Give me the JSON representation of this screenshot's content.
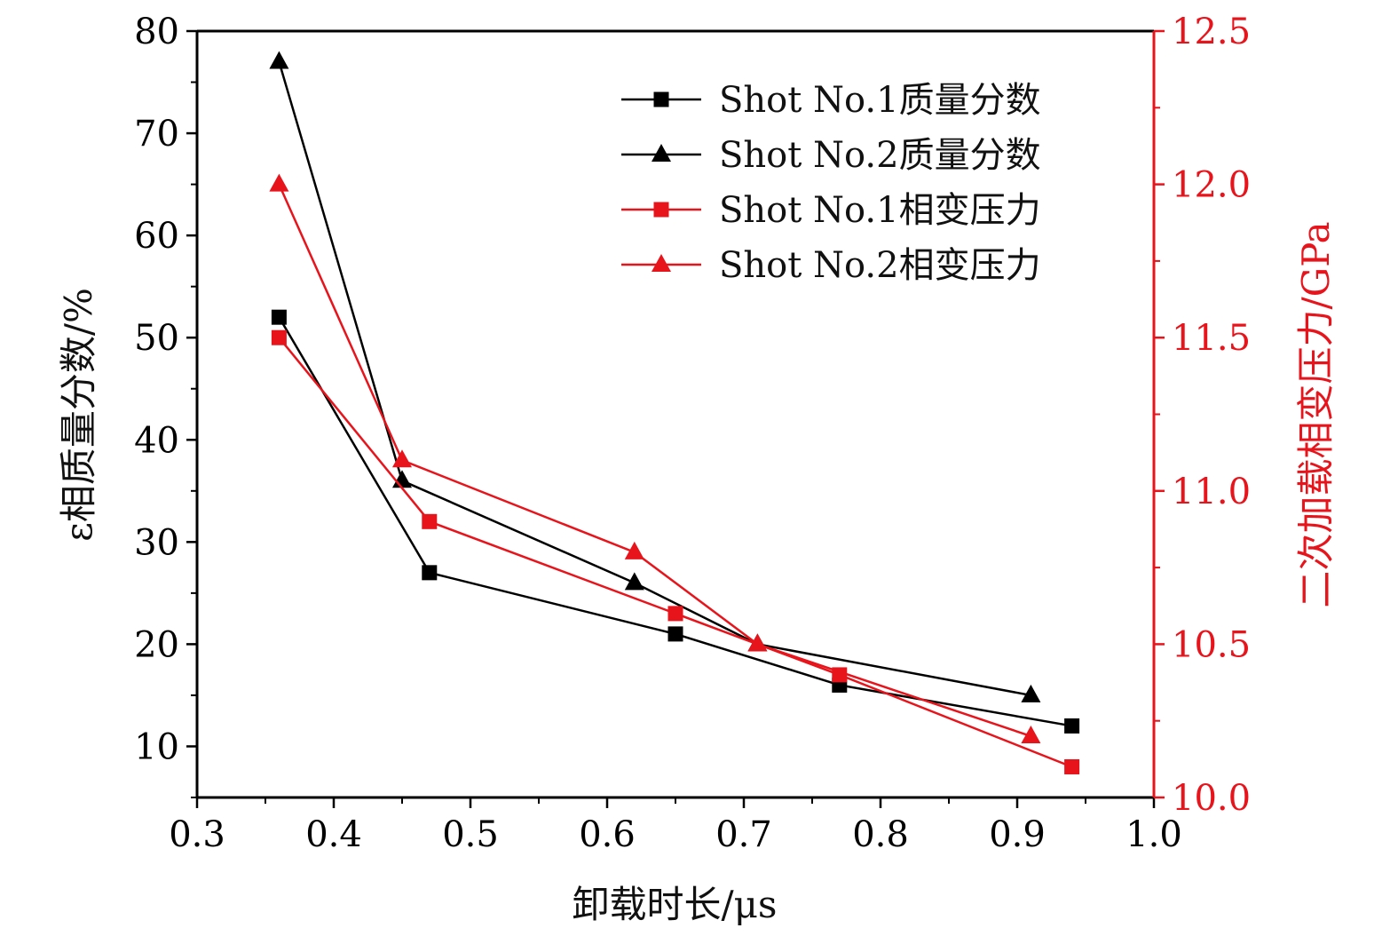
{
  "chart_data": {
    "type": "line",
    "title": "",
    "xlabel": "卸载时长/μs",
    "ylabel_left": "ε相质量分数/%",
    "ylabel_right": "二次加载相变压力/GPa",
    "xlim": [
      0.3,
      1.0
    ],
    "ylim_left": [
      5,
      80
    ],
    "ylim_right": [
      10.0,
      12.5
    ],
    "x_ticks": [
      "0.3",
      "0.4",
      "0.5",
      "0.6",
      "0.7",
      "0.8",
      "0.9",
      "1.0"
    ],
    "y_left_ticks": [
      "10",
      "20",
      "30",
      "40",
      "50",
      "60",
      "70",
      "80"
    ],
    "y_right_ticks": [
      "10.0",
      "10.5",
      "11.0",
      "11.5",
      "12.0",
      "12.5"
    ],
    "grid": false,
    "legend_position": "top-right",
    "colors": {
      "left_axis": "#000000",
      "right_axis": "#e8141c"
    },
    "series": [
      {
        "name": "Shot No.1质量分数",
        "axis": "left",
        "marker": "square",
        "color": "#000000",
        "x": [
          0.36,
          0.47,
          0.65,
          0.77,
          0.94
        ],
        "values": [
          52,
          27,
          21,
          16,
          12
        ]
      },
      {
        "name": "Shot No.2质量分数",
        "axis": "left",
        "marker": "triangle",
        "color": "#000000",
        "x": [
          0.36,
          0.45,
          0.62,
          0.71,
          0.91
        ],
        "values": [
          77,
          36,
          26,
          20,
          15
        ]
      },
      {
        "name": "Shot No.1相变压力",
        "axis": "right",
        "marker": "square",
        "color": "#e8141c",
        "x": [
          0.36,
          0.47,
          0.65,
          0.77,
          0.94
        ],
        "values": [
          11.5,
          10.9,
          10.6,
          10.4,
          10.1
        ]
      },
      {
        "name": "Shot No.2相变压力",
        "axis": "right",
        "marker": "triangle",
        "color": "#e8141c",
        "x": [
          0.36,
          0.45,
          0.62,
          0.71,
          0.91
        ],
        "values": [
          12.0,
          11.1,
          10.8,
          10.5,
          10.2
        ]
      }
    ]
  }
}
